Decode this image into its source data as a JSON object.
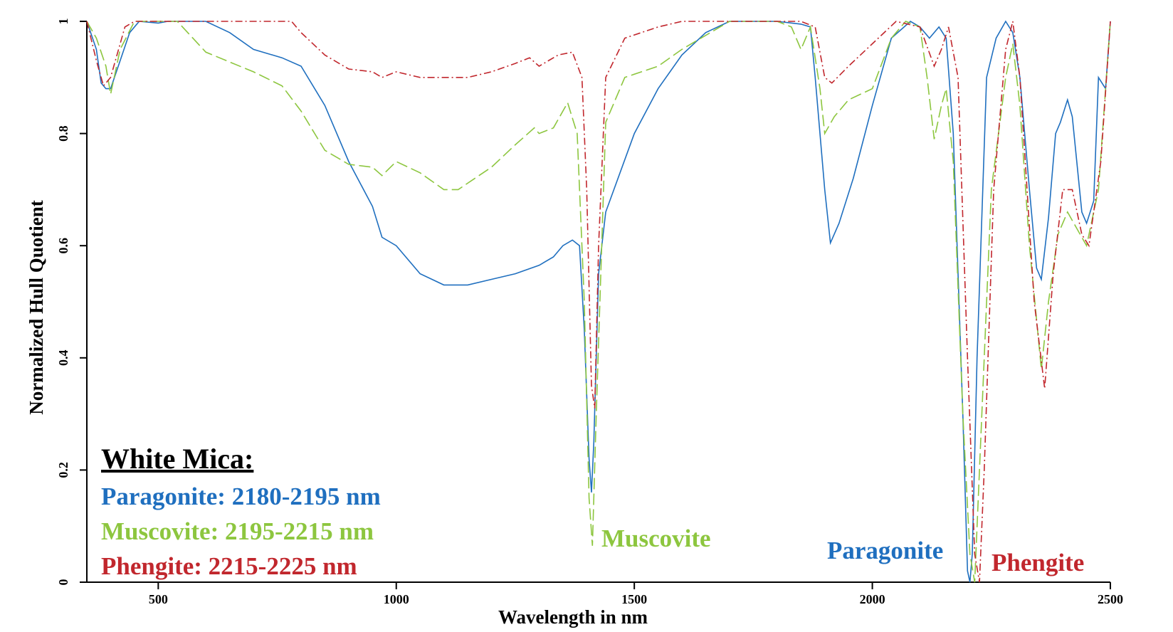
{
  "chart_data": {
    "type": "line",
    "xlabel": "Wavelength in nm",
    "ylabel": "Normalized Hull Quotient",
    "xlim": [
      350,
      2500
    ],
    "ylim": [
      0,
      1
    ],
    "xticks": [
      500,
      1000,
      1500,
      2000,
      2500
    ],
    "yticks": [
      0,
      0.2,
      0.4,
      0.6,
      0.8,
      1
    ],
    "grid": false,
    "legend": {
      "title": "White Mica:",
      "entries": [
        "Paragonite: 2180-2195 nm",
        "Muscovite: 2195-2215 nm",
        "Phengite: 2215-2225 nm"
      ]
    },
    "series": [
      {
        "name": "Paragonite",
        "color": "#1f6fbf",
        "dash": "solid",
        "x": [
          350,
          370,
          380,
          390,
          400,
          420,
          440,
          460,
          500,
          520,
          600,
          650,
          700,
          760,
          800,
          850,
          900,
          950,
          970,
          1000,
          1050,
          1100,
          1150,
          1200,
          1250,
          1300,
          1330,
          1350,
          1370,
          1385,
          1395,
          1405,
          1410,
          1415,
          1425,
          1440,
          1500,
          1550,
          1600,
          1650,
          1700,
          1800,
          1850,
          1870,
          1880,
          1900,
          1912,
          1930,
          1960,
          2000,
          2040,
          2080,
          2100,
          2120,
          2140,
          2155,
          2170,
          2190,
          2200,
          2205,
          2210,
          2220,
          2240,
          2260,
          2280,
          2295,
          2310,
          2330,
          2345,
          2355,
          2370,
          2385,
          2395,
          2410,
          2420,
          2440,
          2450,
          2465,
          2475,
          2490,
          2500
        ],
        "values": [
          1.0,
          0.95,
          0.89,
          0.88,
          0.88,
          0.93,
          0.98,
          1.0,
          0.997,
          1.0,
          1.0,
          0.98,
          0.95,
          0.935,
          0.92,
          0.85,
          0.75,
          0.67,
          0.615,
          0.6,
          0.55,
          0.53,
          0.53,
          0.54,
          0.55,
          0.565,
          0.58,
          0.6,
          0.61,
          0.6,
          0.45,
          0.22,
          0.16,
          0.25,
          0.55,
          0.66,
          0.8,
          0.88,
          0.94,
          0.98,
          1.0,
          1.0,
          0.995,
          0.99,
          0.9,
          0.7,
          0.605,
          0.64,
          0.72,
          0.85,
          0.97,
          1.0,
          0.99,
          0.97,
          0.99,
          0.97,
          0.8,
          0.3,
          0.02,
          0.0,
          0.05,
          0.4,
          0.9,
          0.97,
          1.0,
          0.98,
          0.9,
          0.7,
          0.56,
          0.54,
          0.65,
          0.8,
          0.82,
          0.86,
          0.83,
          0.66,
          0.64,
          0.68,
          0.9,
          0.88,
          1.0
        ]
      },
      {
        "name": "Muscovite",
        "color": "#8dc63f",
        "dash": "dashed",
        "x": [
          350,
          370,
          390,
          400,
          420,
          450,
          500,
          540,
          600,
          700,
          760,
          800,
          850,
          900,
          950,
          970,
          1000,
          1050,
          1100,
          1130,
          1200,
          1250,
          1290,
          1300,
          1330,
          1360,
          1380,
          1395,
          1405,
          1412,
          1420,
          1440,
          1480,
          1550,
          1600,
          1700,
          1800,
          1830,
          1850,
          1870,
          1890,
          1900,
          1920,
          1950,
          2000,
          2040,
          2070,
          2100,
          2115,
          2130,
          2145,
          2155,
          2170,
          2190,
          2205,
          2215,
          2225,
          2250,
          2280,
          2295,
          2310,
          2330,
          2355,
          2370,
          2390,
          2410,
          2430,
          2450,
          2475,
          2500
        ],
        "values": [
          1.0,
          0.97,
          0.92,
          0.87,
          0.95,
          1.0,
          1.0,
          1.0,
          0.945,
          0.91,
          0.885,
          0.84,
          0.77,
          0.745,
          0.74,
          0.725,
          0.75,
          0.73,
          0.7,
          0.7,
          0.74,
          0.78,
          0.81,
          0.8,
          0.81,
          0.855,
          0.8,
          0.5,
          0.15,
          0.065,
          0.3,
          0.82,
          0.9,
          0.92,
          0.95,
          1.0,
          1.0,
          0.99,
          0.95,
          0.99,
          0.88,
          0.8,
          0.83,
          0.86,
          0.88,
          0.97,
          1.0,
          0.99,
          0.9,
          0.79,
          0.85,
          0.88,
          0.75,
          0.3,
          0.05,
          0.0,
          0.2,
          0.7,
          0.9,
          0.96,
          0.85,
          0.6,
          0.38,
          0.5,
          0.62,
          0.66,
          0.63,
          0.6,
          0.7,
          1.0
        ]
      },
      {
        "name": "Phengite",
        "color": "#c1272d",
        "dash": "dashdot",
        "x": [
          350,
          370,
          385,
          400,
          430,
          450,
          780,
          800,
          850,
          900,
          950,
          970,
          1000,
          1050,
          1150,
          1200,
          1250,
          1280,
          1300,
          1340,
          1370,
          1390,
          1400,
          1410,
          1417,
          1425,
          1440,
          1480,
          1550,
          1600,
          1850,
          1880,
          1900,
          1915,
          1950,
          2000,
          2050,
          2100,
          2130,
          2145,
          2160,
          2180,
          2200,
          2215,
          2225,
          2235,
          2255,
          2280,
          2295,
          2310,
          2340,
          2362,
          2380,
          2400,
          2420,
          2440,
          2455,
          2480,
          2500
        ],
        "values": [
          1.0,
          0.93,
          0.885,
          0.9,
          0.99,
          1.0,
          1.0,
          0.98,
          0.94,
          0.915,
          0.91,
          0.9,
          0.91,
          0.9,
          0.9,
          0.91,
          0.925,
          0.935,
          0.92,
          0.94,
          0.945,
          0.9,
          0.7,
          0.35,
          0.31,
          0.6,
          0.9,
          0.97,
          0.99,
          1.0,
          1.0,
          0.99,
          0.9,
          0.89,
          0.92,
          0.96,
          1.0,
          0.99,
          0.92,
          0.95,
          0.99,
          0.9,
          0.4,
          0.05,
          0.0,
          0.2,
          0.7,
          0.95,
          1.0,
          0.9,
          0.5,
          0.345,
          0.55,
          0.7,
          0.7,
          0.62,
          0.6,
          0.75,
          1.0
        ]
      }
    ]
  }
}
